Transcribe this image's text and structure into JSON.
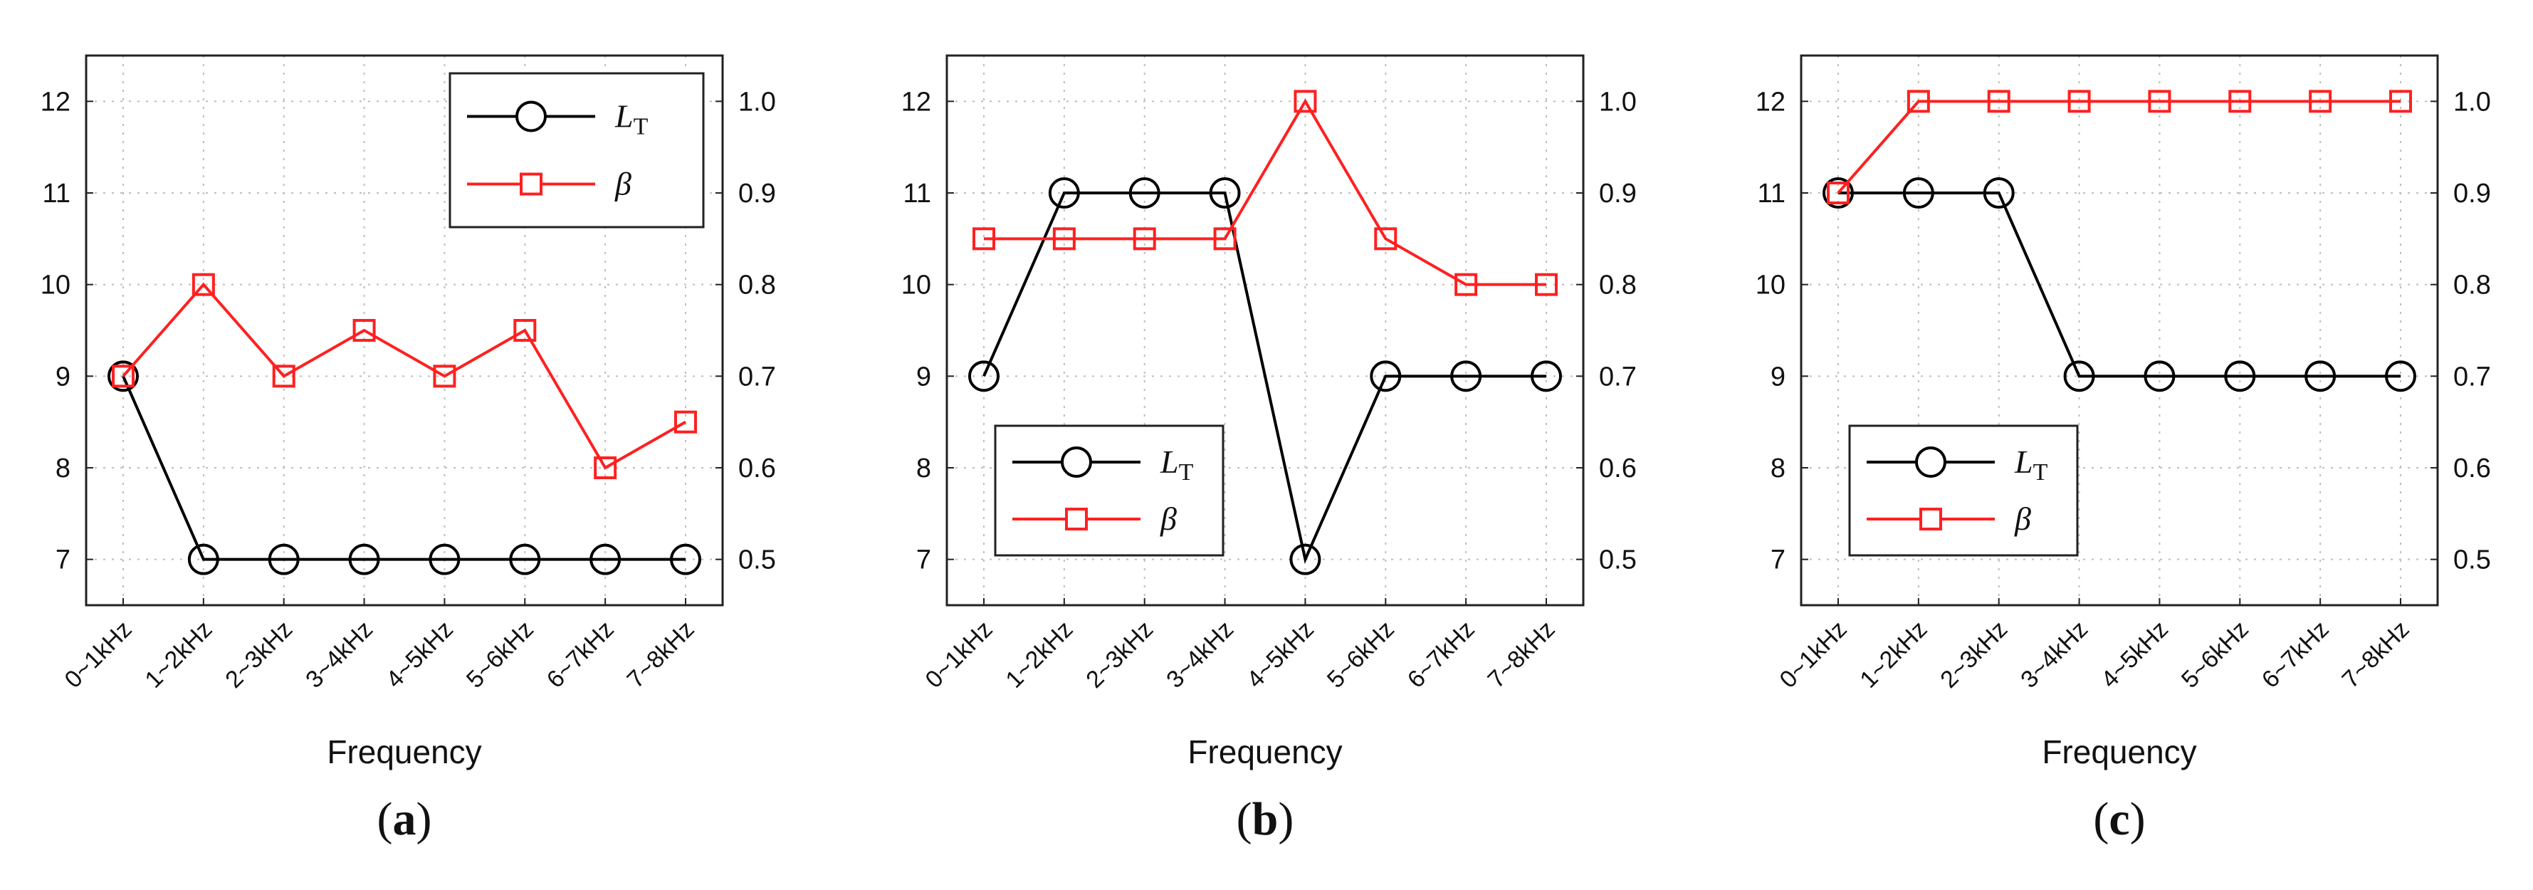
{
  "chart_data": [
    {
      "type": "line",
      "panel_label": "a",
      "categories": [
        "0~1kHz",
        "1~2kHz",
        "2~3kHz",
        "3~4kHz",
        "4~5kHz",
        "5~6kHz",
        "6~7kHz",
        "7~8kHz"
      ],
      "xlabel": "Frequency",
      "y_left": {
        "lim": [
          6.5,
          12.5
        ],
        "ticks": [
          7,
          8,
          9,
          10,
          11,
          12
        ]
      },
      "y_right": {
        "lim": [
          0.45,
          1.05
        ],
        "ticks": [
          "0.5",
          "0.6",
          "0.7",
          "0.8",
          "0.9",
          "1.0"
        ]
      },
      "grid": true,
      "legend_position": "top-right",
      "series": [
        {
          "name": "L",
          "name_sub": "T",
          "axis": "left",
          "marker": "circle",
          "color": "#000000",
          "values": [
            9,
            7,
            7,
            7,
            7,
            7,
            7,
            7
          ]
        },
        {
          "name": "β",
          "axis": "right",
          "marker": "square",
          "color": "#ff2020",
          "values": [
            0.7,
            0.8,
            0.7,
            0.75,
            0.7,
            0.75,
            0.6,
            0.65
          ]
        }
      ]
    },
    {
      "type": "line",
      "panel_label": "b",
      "categories": [
        "0~1kHz",
        "1~2kHz",
        "2~3kHz",
        "3~4kHz",
        "4~5kHz",
        "5~6kHz",
        "6~7kHz",
        "7~8kHz"
      ],
      "xlabel": "Frequency",
      "y_left": {
        "lim": [
          6.5,
          12.5
        ],
        "ticks": [
          7,
          8,
          9,
          10,
          11,
          12
        ]
      },
      "y_right": {
        "lim": [
          0.45,
          1.05
        ],
        "ticks": [
          "0.5",
          "0.6",
          "0.7",
          "0.8",
          "0.9",
          "1.0"
        ]
      },
      "grid": true,
      "legend_position": "bottom-left",
      "series": [
        {
          "name": "L",
          "name_sub": "T",
          "axis": "left",
          "marker": "circle",
          "color": "#000000",
          "values": [
            9,
            11,
            11,
            11,
            7,
            9,
            9,
            9
          ]
        },
        {
          "name": "β",
          "axis": "right",
          "marker": "square",
          "color": "#ff2020",
          "values": [
            0.85,
            0.85,
            0.85,
            0.85,
            1.0,
            0.85,
            0.8,
            0.8
          ]
        }
      ]
    },
    {
      "type": "line",
      "panel_label": "c",
      "categories": [
        "0~1kHz",
        "1~2kHz",
        "2~3kHz",
        "3~4kHz",
        "4~5kHz",
        "5~6kHz",
        "6~7kHz",
        "7~8kHz"
      ],
      "xlabel": "Frequency",
      "y_left": {
        "lim": [
          6.5,
          12.5
        ],
        "ticks": [
          7,
          8,
          9,
          10,
          11,
          12
        ]
      },
      "y_right": {
        "lim": [
          0.45,
          1.05
        ],
        "ticks": [
          "0.5",
          "0.6",
          "0.7",
          "0.8",
          "0.9",
          "1.0"
        ]
      },
      "grid": true,
      "legend_position": "bottom-left",
      "series": [
        {
          "name": "L",
          "name_sub": "T",
          "axis": "left",
          "marker": "circle",
          "color": "#000000",
          "values": [
            11,
            11,
            11,
            9,
            9,
            9,
            9,
            9
          ]
        },
        {
          "name": "β",
          "axis": "right",
          "marker": "square",
          "color": "#ff2020",
          "values": [
            0.9,
            1.0,
            1.0,
            1.0,
            1.0,
            1.0,
            1.0,
            1.0
          ]
        }
      ]
    }
  ]
}
